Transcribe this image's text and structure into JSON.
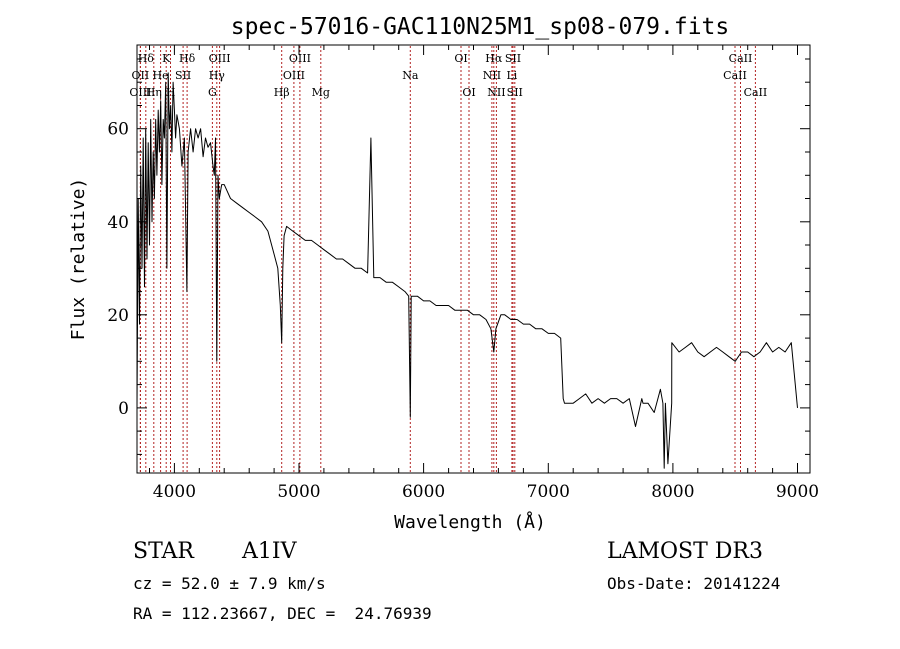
{
  "chart_data": {
    "type": "line",
    "title": "spec-57016-GAC110N25M1_sp08-079.fits",
    "xlabel": "Wavelength (Å)",
    "ylabel": "Flux (relative)",
    "xlim": [
      3700,
      9100
    ],
    "ylim": [
      -14,
      78
    ],
    "xticks": [
      4000,
      5000,
      6000,
      7000,
      8000,
      9000
    ],
    "yticks": [
      0,
      20,
      40,
      60
    ],
    "series": [
      {
        "name": "spectrum",
        "x": [
          3700,
          3710,
          3720,
          3730,
          3740,
          3750,
          3760,
          3770,
          3780,
          3790,
          3800,
          3810,
          3820,
          3830,
          3840,
          3850,
          3860,
          3870,
          3880,
          3890,
          3900,
          3910,
          3920,
          3930,
          3940,
          3950,
          3960,
          3970,
          3980,
          3990,
          4000,
          4010,
          4020,
          4040,
          4060,
          4080,
          4100,
          4110,
          4130,
          4150,
          4170,
          4190,
          4210,
          4230,
          4250,
          4270,
          4290,
          4310,
          4320,
          4330,
          4340,
          4350,
          4360,
          4380,
          4400,
          4450,
          4500,
          4550,
          4600,
          4650,
          4700,
          4750,
          4800,
          4830,
          4850,
          4861,
          4870,
          4880,
          4900,
          4950,
          5000,
          5050,
          5100,
          5150,
          5200,
          5250,
          5300,
          5350,
          5400,
          5450,
          5500,
          5550,
          5577,
          5600,
          5650,
          5700,
          5750,
          5800,
          5850,
          5880,
          5893,
          5900,
          5950,
          6000,
          6050,
          6100,
          6150,
          6200,
          6250,
          6300,
          6350,
          6400,
          6450,
          6500,
          6540,
          6563,
          6580,
          6620,
          6650,
          6700,
          6750,
          6800,
          6850,
          6900,
          6950,
          7000,
          7050,
          7100,
          7120,
          7130,
          7160,
          7200,
          7250,
          7300,
          7350,
          7400,
          7450,
          7500,
          7550,
          7600,
          7650,
          7700,
          7750,
          7760,
          7800,
          7850,
          7900,
          7920,
          7930,
          7940,
          7960,
          7990,
          7991,
          8050,
          8100,
          8150,
          8200,
          8250,
          8300,
          8350,
          8400,
          8450,
          8500,
          8550,
          8600,
          8650,
          8700,
          8750,
          8800,
          8850,
          8900,
          8950,
          9000
        ],
        "y": [
          0,
          45,
          18,
          52,
          30,
          58,
          26,
          60,
          32,
          57,
          35,
          62,
          40,
          55,
          45,
          62,
          50,
          64,
          55,
          66,
          48,
          62,
          58,
          70,
          30,
          72,
          60,
          65,
          55,
          70,
          64,
          58,
          63,
          60,
          52,
          58,
          25,
          55,
          60,
          55,
          60,
          58,
          60,
          54,
          58,
          56,
          57,
          52,
          50,
          58,
          10,
          50,
          45,
          48,
          48,
          45,
          44,
          43,
          42,
          41,
          40,
          38,
          33,
          30,
          22,
          14,
          30,
          37,
          39,
          38,
          37,
          36,
          36,
          35,
          34,
          33,
          32,
          32,
          31,
          30,
          30,
          29,
          58,
          28,
          28,
          27,
          27,
          26,
          25,
          24,
          -2,
          24,
          24,
          23,
          23,
          22,
          22,
          22,
          21,
          21,
          21,
          20,
          20,
          19,
          17,
          12,
          17,
          20,
          20,
          19,
          19,
          18,
          18,
          17,
          17,
          16,
          16,
          15,
          2,
          1,
          1,
          1,
          2,
          3,
          1,
          2,
          1,
          2,
          2,
          1,
          2,
          -4,
          2,
          1,
          1,
          -1,
          4,
          1,
          -13,
          1,
          -12,
          1,
          14,
          12,
          13,
          14,
          12,
          11,
          12,
          13,
          12,
          11,
          10,
          12,
          12,
          11,
          12,
          14,
          12,
          13,
          12,
          14,
          0
        ]
      }
    ],
    "lines": [
      {
        "label": "Hδ",
        "x": 3771,
        "row": 1
      },
      {
        "label": "OII",
        "x": 3727,
        "row": 2
      },
      {
        "label": "OIII",
        "x": 3727,
        "row": 3
      },
      {
        "label": "He",
        "x": 3889,
        "row": 2
      },
      {
        "label": "Hη",
        "x": 3835,
        "row": 3
      },
      {
        "label": "K",
        "x": 3934,
        "row": 1
      },
      {
        "label": "H",
        "x": 3969,
        "row": 3
      },
      {
        "label": "SII",
        "x": 4070,
        "row": 2
      },
      {
        "label": "Hδ",
        "x": 4102,
        "row": 1
      },
      {
        "label": "OIII",
        "x": 4363,
        "row": 1
      },
      {
        "label": "Hγ",
        "x": 4340,
        "row": 2
      },
      {
        "label": "G",
        "x": 4305,
        "row": 3
      },
      {
        "label": "Hβ",
        "x": 4861,
        "row": 3
      },
      {
        "label": "OIII",
        "x": 4959,
        "row": 2
      },
      {
        "label": "OIII",
        "x": 5007,
        "row": 1
      },
      {
        "label": "Mg",
        "x": 5175,
        "row": 3
      },
      {
        "label": "Na",
        "x": 5893,
        "row": 2
      },
      {
        "label": "OI",
        "x": 6300,
        "row": 1
      },
      {
        "label": "OI",
        "x": 6364,
        "row": 3
      },
      {
        "label": "Hα",
        "x": 6563,
        "row": 1
      },
      {
        "label": "NII",
        "x": 6548,
        "row": 2
      },
      {
        "label": "NII",
        "x": 6584,
        "row": 3
      },
      {
        "label": "SII",
        "x": 6717,
        "row": 1
      },
      {
        "label": "Li",
        "x": 6708,
        "row": 2
      },
      {
        "label": "SII",
        "x": 6731,
        "row": 3
      },
      {
        "label": "CaII",
        "x": 8542,
        "row": 1
      },
      {
        "label": "CaII",
        "x": 8498,
        "row": 2
      },
      {
        "label": "CaII",
        "x": 8662,
        "row": 3
      }
    ]
  },
  "info": {
    "class_label": "STAR",
    "subclass": "A1IV",
    "survey": "LAMOST DR3",
    "cz_line": "cz = 52.0 ± 7.9 km/s",
    "obs_date_line": "Obs-Date: 20141224",
    "coords_line": "RA = 112.23667, DEC =  24.76939"
  }
}
